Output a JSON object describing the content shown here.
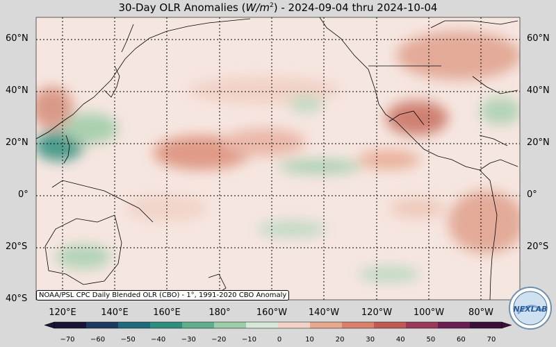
{
  "title": {
    "prefix": "30-Day OLR Anomalies (",
    "unit_base": "W/m",
    "unit_exp": "2",
    "suffix": ") - 2024-09-04 thru 2024-10-04"
  },
  "source_label": "NOAA/PSL CPC Daily Blended OLR (CBO) - 1°, 1991-2020 CBO Anomaly",
  "lat_labels": [
    "60°N",
    "40°N",
    "20°N",
    "0°",
    "20°S",
    "40°S"
  ],
  "lon_labels": [
    "120°E",
    "140°E",
    "160°E",
    "180°",
    "160°W",
    "140°W",
    "120°W",
    "100°W",
    "80°W"
  ],
  "colorbar": {
    "ticks": [
      "−70",
      "−60",
      "−50",
      "−40",
      "−30",
      "−20",
      "−10",
      "0",
      "10",
      "20",
      "30",
      "40",
      "50",
      "60",
      "70"
    ],
    "colors_negative": [
      "#1a1436",
      "#1f3a60",
      "#1f6a7a",
      "#2f8f7e",
      "#5fae8e",
      "#9ccca8",
      "#d6e8d8"
    ],
    "color_zero": "#fbf0ec",
    "colors_positive": [
      "#f2d2c6",
      "#e8a890",
      "#d8806a",
      "#c05a55",
      "#9a3a5a",
      "#6a1f52",
      "#3a0f38"
    ]
  },
  "logo_text": "NEXLAB",
  "colors": {
    "land_outline": "#000000",
    "grid": "#000000",
    "background": "#d9d9d9"
  }
}
